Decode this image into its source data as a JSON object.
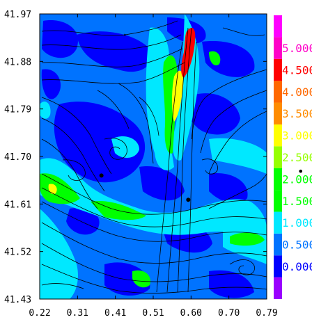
{
  "chart_data": {
    "type": "heatmap",
    "title": "",
    "xlabel": "",
    "ylabel": "",
    "x_ticks": [
      "0.22",
      "0.31",
      "0.41",
      "0.51",
      "0.60",
      "0.70",
      "0.79"
    ],
    "y_ticks": [
      "41.97",
      "41.88",
      "41.79",
      "41.70",
      "41.61",
      "41.52",
      "41.43"
    ],
    "xlim": [
      0.22,
      0.79
    ],
    "ylim": [
      41.43,
      41.97
    ],
    "colorbar": {
      "levels": [
        {
          "label": "",
          "color": "#9a00ff"
        },
        {
          "label": "0.000",
          "color": "#0000ff"
        },
        {
          "label": "0.500",
          "color": "#0073ff"
        },
        {
          "label": "1.000",
          "color": "#00e8ff"
        },
        {
          "label": "1.500",
          "color": "#00ff00"
        },
        {
          "label": "2.000",
          "color": "#00ff00"
        },
        {
          "label": "2.500",
          "color": "#96ff00"
        },
        {
          "label": "3.000",
          "color": "#ffff00"
        },
        {
          "label": "3.500",
          "color": "#ff8c00"
        },
        {
          "label": "4.000",
          "color": "#ff6800"
        },
        {
          "label": "4.500",
          "color": "#ff0000"
        },
        {
          "label": "5.000",
          "color": "#ff00c8"
        },
        {
          "label": "",
          "color": "#ff00ff"
        }
      ],
      "right_marker": "•"
    },
    "points": [
      {
        "x": 0.375,
        "y": 41.664
      },
      {
        "x": 0.593,
        "y": 41.618
      }
    ],
    "background_colors": {
      "blue": "#0000ff",
      "mid_blue": "#0073ff",
      "cyan": "#00e8ff",
      "green": "#00ff00",
      "yellow": "#ffff00",
      "red": "#ff0000"
    }
  }
}
